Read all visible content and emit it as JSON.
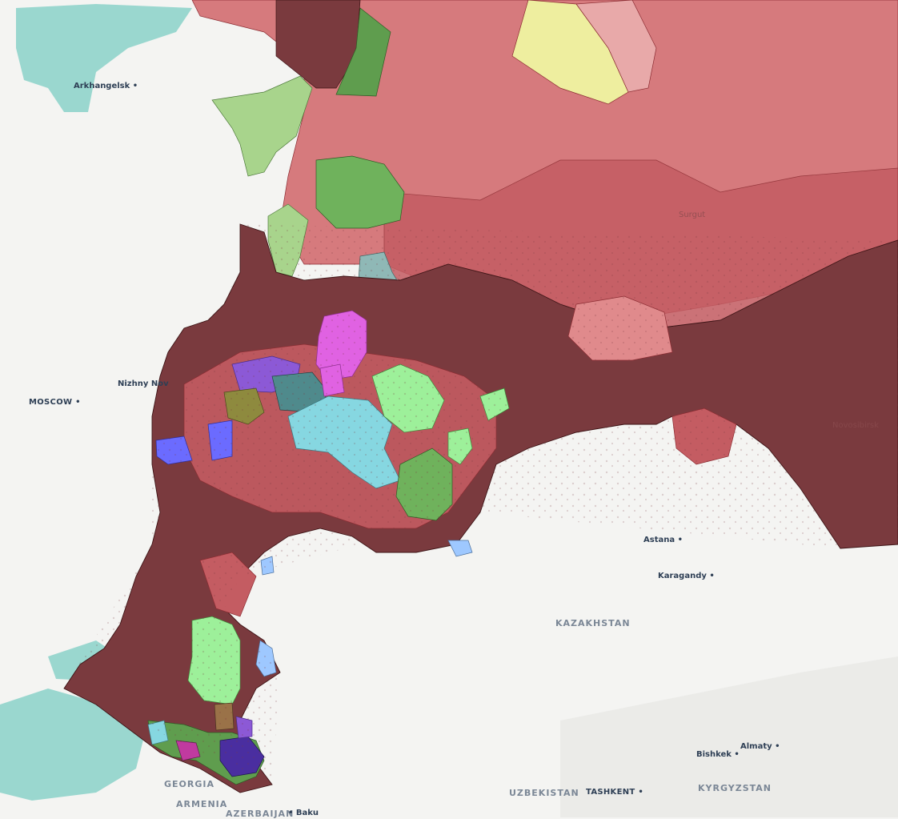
{
  "map": {
    "colors": {
      "sea": "#9ad7cf",
      "land": "#f4f4f2",
      "region_light": "#d67a7d",
      "region_mid": "#c45c62",
      "region_dark": "#7a3a3e",
      "region_border": "#8c2d33",
      "green_light": "#a8d48c",
      "green_dark": "#5f9d4e",
      "green_bright": "#9df09a",
      "yellow": "#eeee9f",
      "pink": "#e58fa0",
      "teal": "#8fb8b6",
      "cyan": "#86d7e1",
      "magenta": "#e062e2",
      "blue": "#6b6bff",
      "purple": "#8c59d6",
      "olive": "#8e8a3e",
      "light_blue": "#9ec8ff",
      "brown": "#9a7248"
    },
    "labels": {
      "arkhangelsk": "Arkhangelsk",
      "moscow": "MOSCOW",
      "nizhny": "Nizhny Nov",
      "astana": "Astana",
      "karagandy": "Karagandy",
      "kazakhstan": "KAZAKHSTAN",
      "bishkek": "Bishkek",
      "almaty": "Almaty",
      "uzbekistan": "UZBEKISTAN",
      "tashkent": "TASHKENT",
      "kyrgyzstan": "KYRGYZSTAN",
      "georgia": "GEORGIA",
      "armenia": "ARMENIA",
      "azerbaijan": "AZERBAIJAN",
      "baku": "Baku",
      "surgut": "Surgut",
      "novosibirsk": "Novosibirsk"
    }
  }
}
